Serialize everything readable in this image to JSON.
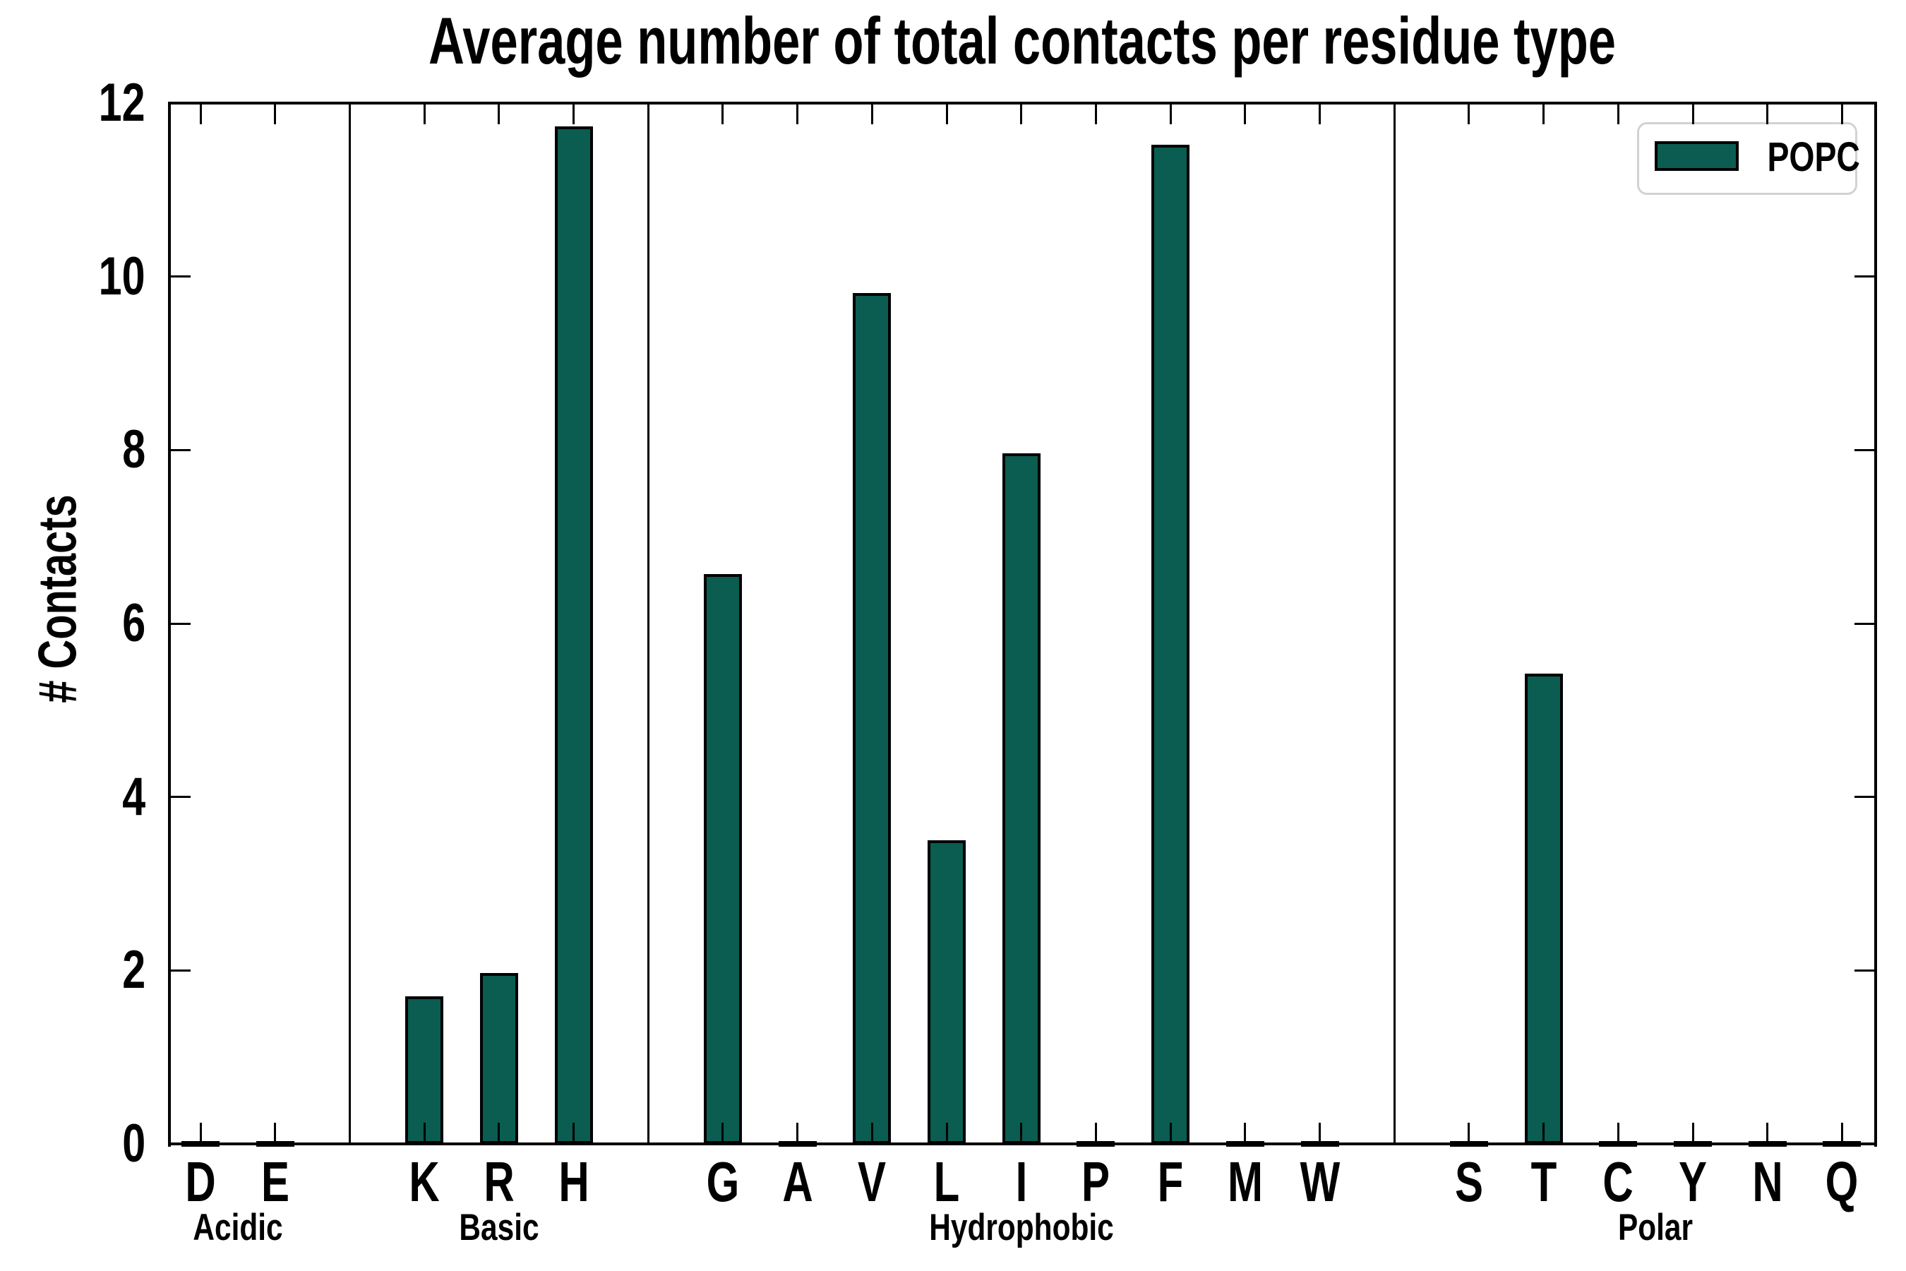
{
  "title": "Average number of total contacts per residue type",
  "y_axis": {
    "label": "# Contacts"
  },
  "legend": {
    "label": "POPC",
    "position": "upper right"
  },
  "colors": {
    "bar_fill": "#0a5d50",
    "bar_edge": "#000000",
    "axis": "#000000",
    "legend_border": "#d2d2d2",
    "background": "#ffffff"
  },
  "chart_data": {
    "type": "bar",
    "title": "Average number of total contacts per residue type",
    "xlabel": "",
    "ylabel": "# Contacts",
    "ylim": [
      0,
      12
    ],
    "yticks": [
      0,
      2,
      4,
      6,
      8,
      10,
      12
    ],
    "grid": false,
    "legend_entries": [
      "POPC"
    ],
    "legend_position": "upper right",
    "bar_color": "#0a5d50",
    "categories": [
      "D",
      "E",
      "K",
      "R",
      "H",
      "G",
      "A",
      "V",
      "L",
      "I",
      "P",
      "F",
      "M",
      "W",
      "S",
      "T",
      "C",
      "Y",
      "N",
      "Q"
    ],
    "values": [
      0.03,
      0.03,
      1.7,
      1.97,
      11.73,
      6.57,
      0.03,
      9.81,
      3.5,
      7.96,
      0.03,
      11.52,
      0.03,
      0.03,
      0.03,
      5.42,
      0.03,
      0.03,
      0.03,
      0.03
    ],
    "series": [
      {
        "name": "POPC",
        "values": [
          0.03,
          0.03,
          1.7,
          1.97,
          11.73,
          6.57,
          0.03,
          9.81,
          3.5,
          7.96,
          0.03,
          11.52,
          0.03,
          0.03,
          0.03,
          5.42,
          0.03,
          0.03,
          0.03,
          0.03
        ]
      }
    ],
    "groups": [
      {
        "label": "Acidic",
        "members": [
          "D",
          "E"
        ]
      },
      {
        "label": "Basic",
        "members": [
          "K",
          "R",
          "H"
        ]
      },
      {
        "label": "Hydrophobic",
        "members": [
          "G",
          "A",
          "V",
          "L",
          "I",
          "P",
          "F",
          "M",
          "W"
        ]
      },
      {
        "label": "Polar",
        "members": [
          "S",
          "T",
          "C",
          "Y",
          "N",
          "Q"
        ]
      }
    ]
  }
}
